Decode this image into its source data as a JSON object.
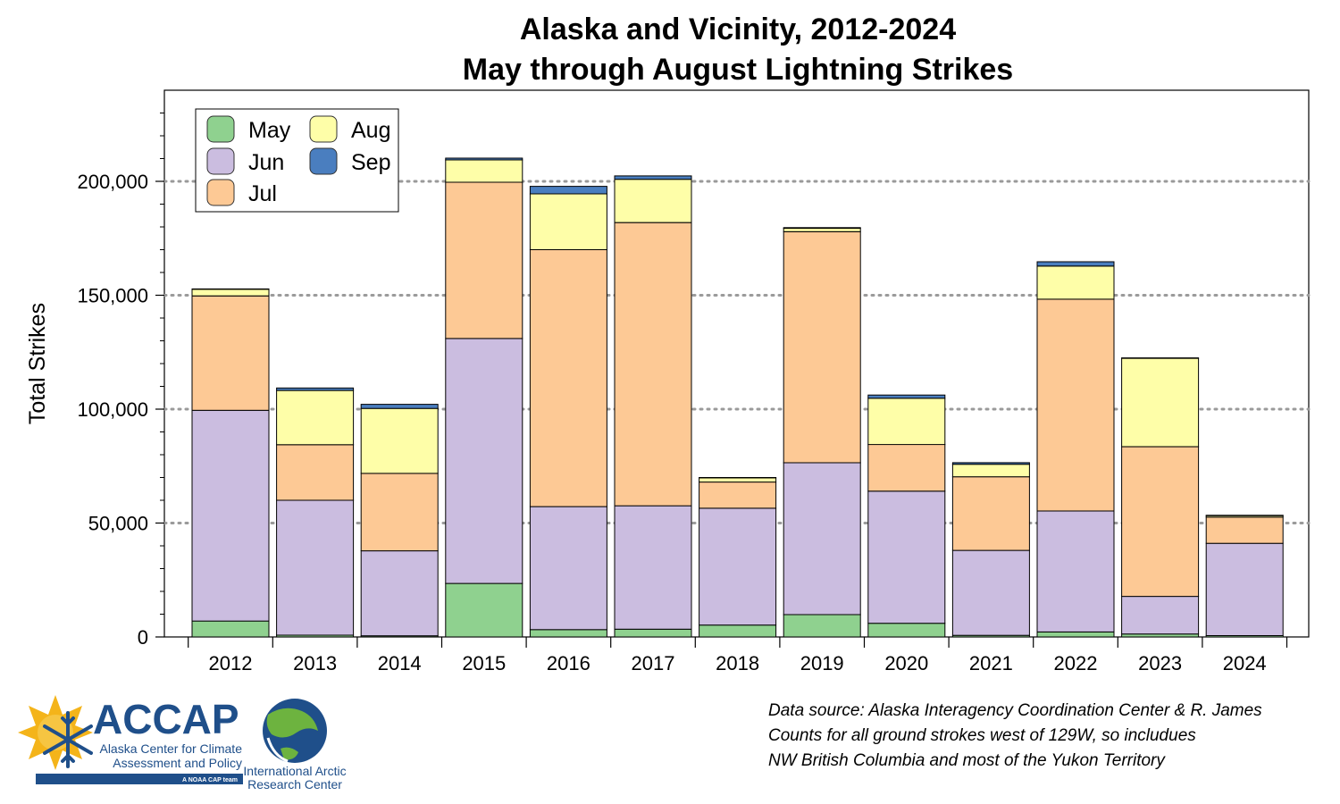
{
  "chart_data": {
    "type": "bar",
    "stacked": true,
    "title": [
      "Alaska and Vicinity, 2012-2024",
      "May through August Lightning Strikes"
    ],
    "xlabel": "",
    "ylabel": "Total Strikes",
    "ylim": [
      0,
      240000
    ],
    "yticks": [
      0,
      50000,
      100000,
      150000,
      200000
    ],
    "ytick_labels": [
      "0",
      "50,000",
      "100,000",
      "150,000",
      "200,000"
    ],
    "grid": "horizontal dotted at major ticks",
    "legend_position": "top-left",
    "categories": [
      "2012",
      "2013",
      "2014",
      "2015",
      "2016",
      "2017",
      "2018",
      "2019",
      "2020",
      "2021",
      "2022",
      "2023",
      "2024"
    ],
    "series": [
      {
        "name": "May",
        "color": "#8fd18f",
        "values": [
          7000,
          800,
          500,
          23500,
          3200,
          3400,
          5200,
          9800,
          6000,
          700,
          2200,
          1300,
          600
        ]
      },
      {
        "name": "Jun",
        "color": "#cbbde0",
        "values": [
          92500,
          59200,
          37300,
          107500,
          54000,
          54200,
          51300,
          66700,
          58000,
          37300,
          53100,
          16500,
          40500
        ]
      },
      {
        "name": "Jul",
        "color": "#fdc995",
        "values": [
          50200,
          24400,
          34000,
          68600,
          112800,
          124300,
          11500,
          101400,
          20500,
          32300,
          93000,
          65700,
          11500
        ]
      },
      {
        "name": "Aug",
        "color": "#fefea8",
        "values": [
          3000,
          23800,
          28500,
          9800,
          24500,
          19000,
          1800,
          1500,
          20300,
          5500,
          14500,
          38800,
          700
        ]
      },
      {
        "name": "Sep",
        "color": "#4a7ebf",
        "values": [
          100,
          1100,
          1800,
          800,
          3300,
          1500,
          200,
          300,
          1400,
          700,
          1900,
          200,
          100
        ]
      }
    ]
  },
  "source_note": [
    "Data source: Alaska Interagency Coordination Center & R. James",
    "Counts for all ground strokes west of 129W, so includues",
    "NW British Columbia and most of the Yukon Territory"
  ],
  "logos": {
    "accap": {
      "name": "ACCAP",
      "line1": "Alaska Center for Climate",
      "line2": "Assessment and Policy",
      "tagline": "A NOAA CAP team",
      "brand_color": "#1f4f8a",
      "sun_color": "#f4b41a"
    },
    "iarc": {
      "line1": "International Arctic",
      "line2": "Research Center",
      "brand_color": "#1f4f8a"
    }
  }
}
